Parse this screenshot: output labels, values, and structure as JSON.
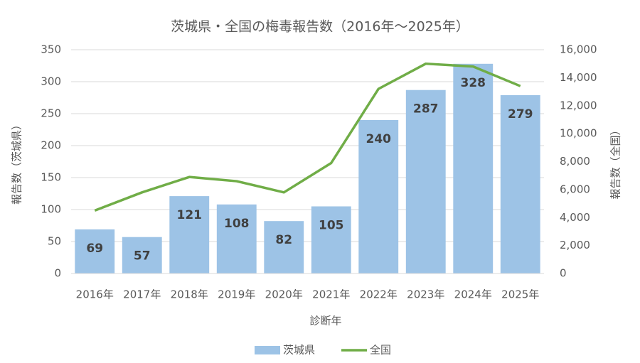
{
  "chart_data": {
    "type": "combo",
    "title": "茨城県・全国の梅毒報告数（2016年～2025年）",
    "x_label": "診断年",
    "y_label": "報告数（茨城県）",
    "y2_label": "報告数（全国）",
    "categories": [
      "2016年",
      "2017年",
      "2018年",
      "2019年",
      "2020年",
      "2021年",
      "2022年",
      "2023年",
      "2024年",
      "2025年"
    ],
    "series": [
      {
        "name": "茨城県",
        "type": "bar",
        "color": "#9dc3e6",
        "axis": "y",
        "values": [
          69,
          57,
          121,
          108,
          82,
          105,
          240,
          287,
          328,
          279
        ]
      },
      {
        "name": "全国",
        "type": "line",
        "color": "#70ad47",
        "axis": "y2",
        "values": [
          4500,
          5800,
          6900,
          6600,
          5800,
          7900,
          13200,
          15000,
          14800,
          13400
        ]
      }
    ],
    "ylim": [
      0,
      350
    ],
    "yticks": [
      0,
      50,
      100,
      150,
      200,
      250,
      300,
      350
    ],
    "y2lim": [
      0,
      16000
    ],
    "y2ticks": [
      0,
      {
        "value": 2000,
        "label": "2,000"
      },
      {
        "value": 4000,
        "label": "4,000"
      },
      {
        "value": 6000,
        "label": "6,000"
      },
      {
        "value": 8000,
        "label": "8,000"
      },
      {
        "value": 10000,
        "label": "10,000"
      },
      {
        "value": 12000,
        "label": "12,000"
      },
      {
        "value": 14000,
        "label": "14,000"
      },
      {
        "value": 16000,
        "label": "16,000"
      }
    ],
    "grid": true,
    "legend": "bottom"
  }
}
